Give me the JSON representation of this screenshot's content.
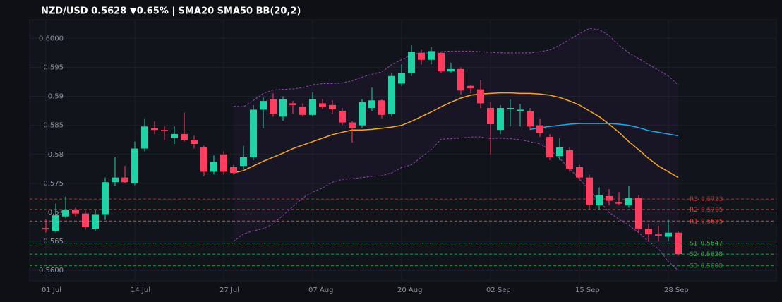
{
  "chart_data": {
    "type": "candlestick",
    "title": "NZD/USD  0.5628  ▼0.65%  |  SMA20  SMA50  BB(20,2)",
    "categories": [
      "01 Jul",
      null,
      null,
      null,
      null,
      null,
      null,
      null,
      null,
      "14 Jul",
      null,
      null,
      null,
      null,
      null,
      null,
      null,
      null,
      "27 Jul",
      null,
      null,
      null,
      null,
      null,
      null,
      null,
      null,
      "07 Aug",
      null,
      null,
      null,
      null,
      null,
      null,
      null,
      null,
      "20 Aug",
      null,
      null,
      null,
      null,
      null,
      null,
      null,
      null,
      "02 Sep",
      null,
      null,
      null,
      null,
      null,
      null,
      null,
      null,
      "15 Sep",
      null,
      null,
      null,
      null,
      null,
      null,
      null,
      null,
      "28 Sep",
      null
    ],
    "open": [
      0.5673,
      0.5668,
      0.5693,
      0.5705,
      0.5698,
      0.5672,
      0.5697,
      0.5752,
      0.576,
      0.575,
      0.581,
      0.5845,
      0.5842,
      0.5828,
      0.5835,
      0.5825,
      0.5813,
      0.577,
      0.58,
      0.5778,
      0.578,
      0.5795,
      0.5877,
      0.5895,
      0.5865,
      0.5888,
      0.5882,
      0.5868,
      0.5888,
      0.5885,
      0.5875,
      0.5855,
      0.585,
      0.588,
      0.5893,
      0.587,
      0.5922,
      0.594,
      0.5975,
      0.5963,
      0.5975,
      0.5943,
      0.5947,
      0.5918,
      0.5912,
      0.588,
      0.5842,
      0.5878,
      0.5875,
      0.5875,
      0.585,
      0.583,
      0.5797,
      0.5807,
      0.5778,
      0.576,
      0.5712,
      0.5728,
      0.5718,
      0.5712,
      0.5725,
      0.5672,
      0.5662,
      0.5658,
      0.5665
    ],
    "high": [
      0.5688,
      0.5715,
      0.5727,
      0.5708,
      0.5703,
      0.5705,
      0.576,
      0.5795,
      0.578,
      0.5822,
      0.5862,
      0.5857,
      0.5848,
      0.5848,
      0.5872,
      0.5832,
      0.5815,
      0.5798,
      0.5805,
      0.5782,
      0.5815,
      0.5885,
      0.5898,
      0.5905,
      0.59,
      0.5892,
      0.5888,
      0.5907,
      0.5895,
      0.5893,
      0.588,
      0.5858,
      0.5895,
      0.5915,
      0.5895,
      0.594,
      0.5955,
      0.5988,
      0.598,
      0.5985,
      0.5977,
      0.5958,
      0.595,
      0.592,
      0.5928,
      0.589,
      0.5885,
      0.5895,
      0.5887,
      0.588,
      0.5862,
      0.5835,
      0.5828,
      0.5812,
      0.5782,
      0.5765,
      0.5743,
      0.574,
      0.5735,
      0.5745,
      0.573,
      0.568,
      0.5677,
      0.5687,
      0.5667
    ],
    "low": [
      0.5665,
      0.5665,
      0.569,
      0.5693,
      0.567,
      0.5668,
      0.5687,
      0.5745,
      0.575,
      0.5747,
      0.5805,
      0.5835,
      0.5825,
      0.5818,
      0.5822,
      0.581,
      0.5762,
      0.5765,
      0.5765,
      0.5765,
      0.5775,
      0.579,
      0.5845,
      0.5865,
      0.5858,
      0.587,
      0.5865,
      0.5865,
      0.5878,
      0.587,
      0.585,
      0.582,
      0.5845,
      0.5875,
      0.5862,
      0.5865,
      0.5918,
      0.5935,
      0.5955,
      0.5955,
      0.594,
      0.594,
      0.5903,
      0.5905,
      0.588,
      0.58,
      0.5835,
      0.5848,
      0.5848,
      0.5842,
      0.583,
      0.579,
      0.579,
      0.577,
      0.5755,
      0.5705,
      0.5705,
      0.5712,
      0.5712,
      0.5708,
      0.5665,
      0.565,
      0.565,
      0.565,
      0.5625
    ],
    "close": [
      0.5671,
      0.5695,
      0.5705,
      0.5698,
      0.5675,
      0.5697,
      0.5752,
      0.576,
      0.5752,
      0.581,
      0.5848,
      0.5842,
      0.584,
      0.5835,
      0.5825,
      0.5818,
      0.577,
      0.5787,
      0.577,
      0.5768,
      0.5795,
      0.5877,
      0.5892,
      0.587,
      0.5895,
      0.5885,
      0.5868,
      0.5895,
      0.5882,
      0.5878,
      0.5855,
      0.5845,
      0.589,
      0.5893,
      0.5868,
      0.5935,
      0.594,
      0.5977,
      0.5963,
      0.5978,
      0.5943,
      0.5947,
      0.591,
      0.5914,
      0.5888,
      0.5852,
      0.588,
      0.588,
      0.5877,
      0.5848,
      0.5837,
      0.5795,
      0.5812,
      0.5775,
      0.576,
      0.5713,
      0.573,
      0.572,
      0.5715,
      0.5725,
      0.5672,
      0.5662,
      0.566,
      0.5665,
      0.5628
    ],
    "up_color": "#1fd3a6",
    "down_color": "#ff3d5e",
    "lines": [
      {
        "color": "#f5a623",
        "dash": false,
        "values": [
          null,
          null,
          null,
          null,
          null,
          null,
          null,
          null,
          null,
          null,
          null,
          null,
          null,
          null,
          null,
          null,
          null,
          null,
          null,
          0.5768,
          0.5772,
          0.578,
          0.5788,
          0.5795,
          0.5802,
          0.581,
          0.5816,
          0.5822,
          0.5828,
          0.5834,
          0.5838,
          0.5842,
          0.5842,
          0.5843,
          0.5845,
          0.5847,
          0.585,
          0.5857,
          0.5865,
          0.5873,
          0.5882,
          0.589,
          0.5897,
          0.5902,
          0.5904,
          0.5905,
          0.5906,
          0.5906,
          0.5905,
          0.5905,
          0.5904,
          0.5902,
          0.5898,
          0.5892,
          0.5885,
          0.5875,
          0.5865,
          0.5852,
          0.5838,
          0.5822,
          0.5808,
          0.5793,
          0.578,
          0.577,
          0.576
        ]
      },
      {
        "color": "#1ea7e8",
        "dash": false,
        "values": [
          null,
          null,
          null,
          null,
          null,
          null,
          null,
          null,
          null,
          null,
          null,
          null,
          null,
          null,
          null,
          null,
          null,
          null,
          null,
          null,
          null,
          null,
          null,
          null,
          null,
          null,
          null,
          null,
          null,
          null,
          null,
          null,
          null,
          null,
          null,
          null,
          null,
          null,
          null,
          null,
          null,
          null,
          null,
          null,
          null,
          null,
          null,
          null,
          null,
          0.5843,
          0.5846,
          0.5848,
          0.585,
          0.5852,
          0.5853,
          0.5853,
          0.5853,
          0.5853,
          0.5852,
          0.585,
          0.5846,
          0.5841,
          0.5838,
          0.5835,
          0.5832
        ]
      },
      {
        "color": "#8e44ad",
        "dash": true,
        "values": [
          null,
          null,
          null,
          null,
          null,
          null,
          null,
          null,
          null,
          null,
          null,
          null,
          null,
          null,
          null,
          null,
          null,
          null,
          null,
          0.5883,
          0.5882,
          0.5893,
          0.5905,
          0.5911,
          0.5912,
          0.5913,
          0.5915,
          0.592,
          0.5922,
          0.5922,
          0.5923,
          0.5927,
          0.5933,
          0.5938,
          0.5942,
          0.5955,
          0.5963,
          0.5972,
          0.5975,
          0.5975,
          0.5977,
          0.5978,
          0.5978,
          0.5978,
          0.5977,
          0.5976,
          0.5975,
          0.5975,
          0.5975,
          0.5975,
          0.5977,
          0.598,
          0.5988,
          0.5998,
          0.6008,
          0.6017,
          0.6015,
          0.6005,
          0.5988,
          0.5975,
          0.5965,
          0.5955,
          0.5945,
          0.5935,
          0.592
        ]
      },
      {
        "color": "#8e44ad",
        "dash": true,
        "values": [
          null,
          null,
          null,
          null,
          null,
          null,
          null,
          null,
          null,
          null,
          null,
          null,
          null,
          null,
          null,
          null,
          null,
          null,
          null,
          0.565,
          0.5663,
          0.5668,
          0.5672,
          0.568,
          0.5695,
          0.571,
          0.5725,
          0.5735,
          0.5742,
          0.5752,
          0.5757,
          0.5758,
          0.576,
          0.5762,
          0.5763,
          0.5768,
          0.5777,
          0.5782,
          0.5795,
          0.5808,
          0.5826,
          0.5827,
          0.5828,
          0.583,
          0.583,
          0.5827,
          0.5828,
          0.5827,
          0.5825,
          0.5822,
          0.5818,
          0.5808,
          0.5793,
          0.5775,
          0.5758,
          0.5738,
          0.572,
          0.57,
          0.5688,
          0.5678,
          0.5665,
          0.565,
          0.5637,
          0.5615,
          0.56
        ]
      }
    ],
    "levels": [
      {
        "name": "R3",
        "value": 0.5723,
        "color": "#a8322f"
      },
      {
        "name": "R2",
        "value": 0.5705,
        "color": "#c63a36"
      },
      {
        "name": "R1",
        "value": 0.5685,
        "color": "#e0443f"
      },
      {
        "name": "S1",
        "value": 0.5647,
        "color": "#2fb84f"
      },
      {
        "name": "S2",
        "value": 0.5628,
        "color": "#27a044"
      },
      {
        "name": "S3",
        "value": 0.5608,
        "color": "#1f8a3a"
      }
    ],
    "ylim": [
      0.5582,
      0.6032
    ],
    "yticks": [
      {
        "value": 0.56,
        "label": "0.5600"
      },
      0.565,
      0.57,
      0.575,
      0.58,
      0.585,
      0.59,
      0.595,
      {
        "value": 0.6,
        "label": "0.6000"
      }
    ],
    "grid": true
  }
}
